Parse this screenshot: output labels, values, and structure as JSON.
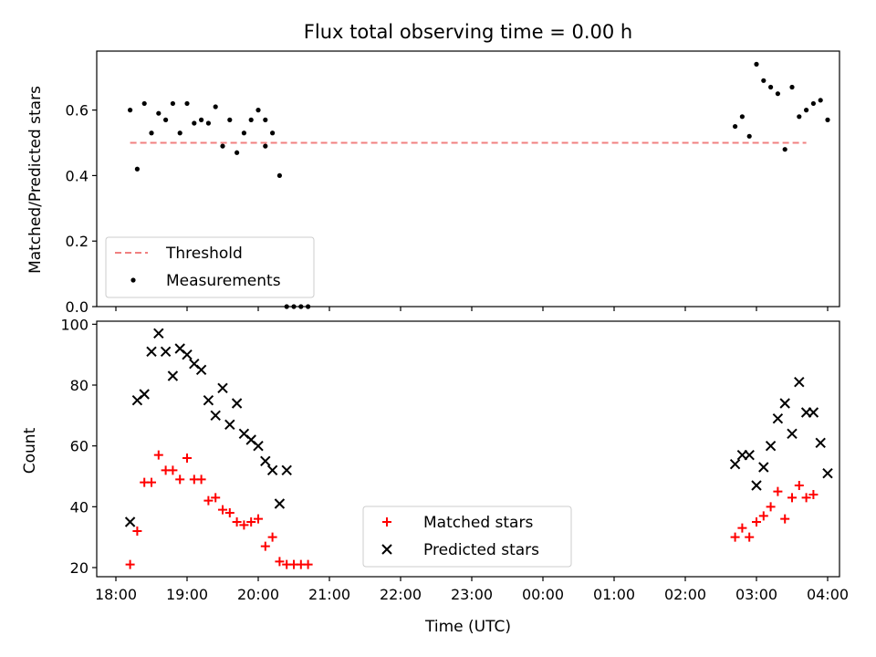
{
  "chart_data": [
    {
      "type": "scatter",
      "title": "Flux total observing time = 0.00 h",
      "xlabel": "",
      "ylabel": "Matched/Predicted stars",
      "x_axis": "time",
      "xlim": [
        "18:00",
        "04:00"
      ],
      "ylim": [
        0,
        0.78
      ],
      "yticks": [
        0.0,
        0.2,
        0.4,
        0.6
      ],
      "ytick_labels": [
        "0.0",
        "0.2",
        "0.4",
        "0.6"
      ],
      "legend": {
        "position": "lower-left",
        "entries": [
          "Threshold",
          "Measurements"
        ]
      },
      "grid": false,
      "series": [
        {
          "name": "Threshold",
          "kind": "dashed-line",
          "color": "#f08080",
          "x": [
            "18:12",
            "03:42"
          ],
          "y": [
            0.5,
            0.5
          ]
        },
        {
          "name": "Measurements",
          "kind": "dot",
          "color": "#000000",
          "x": [
            "18:12",
            "18:18",
            "18:24",
            "18:30",
            "18:36",
            "18:42",
            "18:48",
            "18:54",
            "19:00",
            "19:06",
            "19:12",
            "19:18",
            "19:24",
            "19:30",
            "19:36",
            "19:42",
            "19:48",
            "19:54",
            "20:00",
            "20:06",
            "20:06",
            "20:12",
            "20:18",
            "20:24",
            "20:30",
            "20:36",
            "20:42",
            "02:42",
            "02:48",
            "02:54",
            "03:00",
            "03:06",
            "03:12",
            "03:18",
            "03:24",
            "03:30",
            "03:36",
            "03:42",
            "03:48",
            "03:54",
            "04:00"
          ],
          "y": [
            0.6,
            0.42,
            0.62,
            0.53,
            0.59,
            0.57,
            0.62,
            0.53,
            0.62,
            0.56,
            0.57,
            0.56,
            0.61,
            0.49,
            0.57,
            0.47,
            0.53,
            0.57,
            0.6,
            0.49,
            0.57,
            0.53,
            0.4,
            0.0,
            0.0,
            0.0,
            0.0,
            0.55,
            0.58,
            0.52,
            0.74,
            0.69,
            0.67,
            0.65,
            0.48,
            0.67,
            0.58,
            0.6,
            0.62,
            0.63,
            0.57
          ]
        }
      ]
    },
    {
      "type": "scatter",
      "title": "",
      "xlabel": "Time (UTC)",
      "ylabel": "Count",
      "x_axis": "time",
      "xlim": [
        "18:00",
        "04:00"
      ],
      "ylim": [
        17,
        101
      ],
      "yticks": [
        20,
        40,
        60,
        80,
        100
      ],
      "ytick_labels": [
        "20",
        "40",
        "60",
        "80",
        "100"
      ],
      "xtick_labels": [
        "18:00",
        "19:00",
        "20:00",
        "21:00",
        "22:00",
        "23:00",
        "00:00",
        "01:00",
        "02:00",
        "03:00",
        "04:00"
      ],
      "legend": {
        "position": "lower-center",
        "entries": [
          "Matched stars",
          "Predicted stars"
        ]
      },
      "grid": false,
      "series": [
        {
          "name": "Matched stars",
          "marker": "plus",
          "color": "#ff0000",
          "x": [
            "18:12",
            "18:18",
            "18:24",
            "18:30",
            "18:36",
            "18:42",
            "18:48",
            "18:54",
            "19:00",
            "19:06",
            "19:12",
            "19:18",
            "19:24",
            "19:30",
            "19:36",
            "19:42",
            "19:48",
            "19:54",
            "20:00",
            "20:06",
            "20:12",
            "20:18",
            "20:24",
            "20:30",
            "20:36",
            "20:42",
            "02:42",
            "02:48",
            "02:54",
            "03:00",
            "03:06",
            "03:12",
            "03:18",
            "03:24",
            "03:30",
            "03:36",
            "03:42",
            "03:48"
          ],
          "y": [
            21,
            32,
            48,
            48,
            57,
            52,
            52,
            49,
            56,
            49,
            49,
            42,
            43,
            39,
            38,
            35,
            34,
            35,
            36,
            27,
            30,
            22,
            21,
            21,
            21,
            21,
            30,
            33,
            30,
            35,
            37,
            40,
            45,
            36,
            43,
            47,
            43,
            44
          ]
        },
        {
          "name": "Predicted stars",
          "marker": "x",
          "color": "#000000",
          "x": [
            "18:12",
            "18:18",
            "18:24",
            "18:30",
            "18:36",
            "18:42",
            "18:48",
            "18:54",
            "19:00",
            "19:06",
            "19:12",
            "19:18",
            "19:24",
            "19:30",
            "19:36",
            "19:42",
            "19:48",
            "19:54",
            "20:00",
            "20:06",
            "20:12",
            "20:18",
            "20:24",
            "02:42",
            "02:48",
            "02:54",
            "03:00",
            "03:06",
            "03:12",
            "03:18",
            "03:24",
            "03:30",
            "03:36",
            "03:42",
            "03:48",
            "03:54",
            "04:00"
          ],
          "y": [
            35,
            75,
            77,
            91,
            97,
            91,
            83,
            92,
            90,
            87,
            85,
            75,
            70,
            79,
            67,
            74,
            64,
            62,
            60,
            55,
            52,
            41,
            52,
            54,
            57,
            57,
            47,
            53,
            60,
            69,
            74,
            64,
            81,
            71,
            71,
            61,
            51
          ]
        }
      ]
    }
  ]
}
